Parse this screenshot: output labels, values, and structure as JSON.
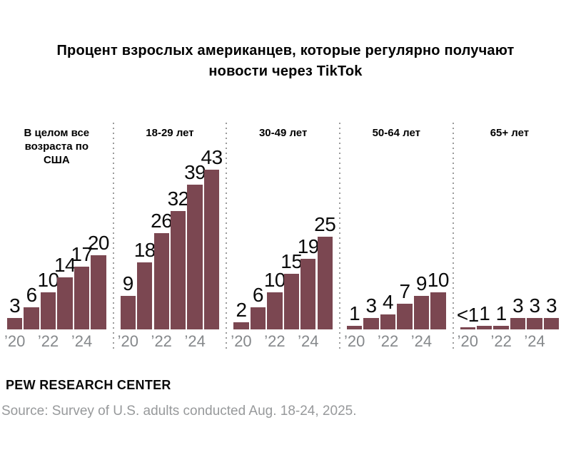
{
  "title": "Процент взрослых американцев, которые регулярно получают новости через TikTok",
  "chart_data": {
    "type": "bar",
    "title": "Процент взрослых американцев, которые регулярно получают новости через TikTok",
    "unit": "percent of U.S. adults",
    "years": [
      "2020",
      "2021",
      "2022",
      "2023",
      "2024",
      "2025"
    ],
    "x_tick_labels": [
      "’20",
      "’22",
      "’24"
    ],
    "x_tick_year_indexes": [
      0,
      2,
      4
    ],
    "panels": [
      {
        "label": "В целом все возраста по США",
        "values": [
          3,
          6,
          10,
          14,
          17,
          20
        ],
        "display_values": [
          "3",
          "6",
          "10",
          "14",
          "17",
          "20"
        ]
      },
      {
        "label": "18-29 лет",
        "values": [
          9,
          18,
          26,
          32,
          39,
          43
        ],
        "display_values": [
          "9",
          "18",
          "26",
          "32",
          "39",
          "43"
        ]
      },
      {
        "label": "30-49 лет",
        "values": [
          2,
          6,
          10,
          15,
          19,
          25
        ],
        "display_values": [
          "2",
          "6",
          "10",
          "15",
          "19",
          "25"
        ]
      },
      {
        "label": "50-64 лет",
        "values": [
          1,
          3,
          4,
          7,
          9,
          10
        ],
        "display_values": [
          "1",
          "3",
          "4",
          "7",
          "9",
          "10"
        ]
      },
      {
        "label": "65+ лет",
        "values": [
          0.5,
          1,
          1,
          3,
          3,
          3
        ],
        "display_values": [
          "<1",
          "1",
          "1",
          "3",
          "3",
          "3"
        ]
      }
    ],
    "bar_color": "#7b4751",
    "value_label_color": "#0b0b0b",
    "axis_tick_color": "#85888b",
    "separator_color": "#9a9a9a",
    "ylim": [
      0,
      45
    ],
    "grid": false,
    "legend": false
  },
  "footer": {
    "brand": "PEW RESEARCH CENTER",
    "source": "Source: Survey of U.S. adults conducted Aug. 18-24, 2025."
  }
}
